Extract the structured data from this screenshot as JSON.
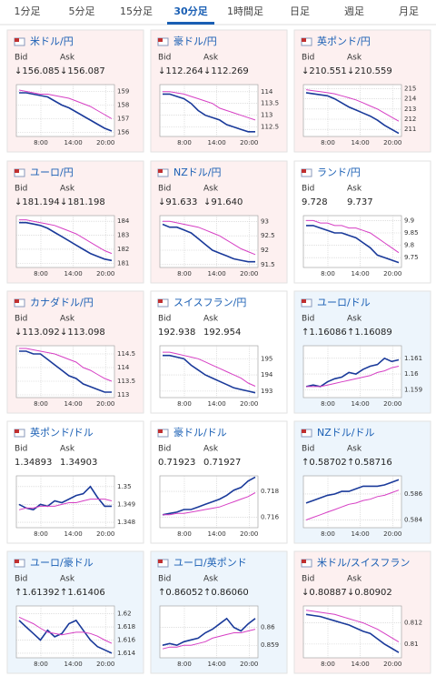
{
  "tabs": {
    "items": [
      "1分足",
      "5分足",
      "15分足",
      "30分足",
      "1時間足",
      "日足",
      "週足",
      "月足"
    ],
    "active": 3,
    "active_color": "#1a5fb4"
  },
  "labels": {
    "bid": "Bid",
    "ask": "Ask"
  },
  "time_labels": [
    "8:00",
    "14:00",
    "20:00"
  ],
  "trend_colors": {
    "down": "#fdf0f0",
    "up": "#edf5fc",
    "flat": "#ffffff"
  },
  "panels": [
    {
      "name": "米ドル/円",
      "bid": "↓156.085",
      "ask": "↓156.087",
      "trend": "down",
      "chart_data": {
        "type": "line",
        "ylim": [
          155.7,
          159.5
        ],
        "yticks": [
          159,
          158,
          157,
          156
        ],
        "series": [
          {
            "color": "#1a3a9a",
            "values": [
              158.9,
              158.9,
              158.8,
              158.7,
              158.6,
              158.3,
              158.0,
              157.8,
              157.5,
              157.2,
              156.9,
              156.6,
              156.3,
              156.1
            ]
          },
          {
            "color": "#d63fc4",
            "values": [
              159.1,
              159.0,
              158.9,
              158.8,
              158.8,
              158.7,
              158.6,
              158.5,
              158.3,
              158.1,
              157.9,
              157.6,
              157.3,
              157.0
            ]
          }
        ]
      }
    },
    {
      "name": "豪ドル/円",
      "bid": "↓112.264",
      "ask": "↓112.269",
      "trend": "down",
      "chart_data": {
        "type": "line",
        "ylim": [
          112.1,
          114.3
        ],
        "yticks": [
          114,
          113.5,
          113,
          112.5
        ],
        "series": [
          {
            "color": "#1a3a9a",
            "values": [
              113.9,
              113.9,
              113.8,
              113.7,
              113.5,
              113.2,
              113.0,
              112.9,
              112.8,
              112.6,
              112.5,
              112.4,
              112.3,
              112.3
            ]
          },
          {
            "color": "#d63fc4",
            "values": [
              114.0,
              114.0,
              113.95,
              113.9,
              113.8,
              113.7,
              113.6,
              113.5,
              113.3,
              113.2,
              113.1,
              113.0,
              112.9,
              112.8
            ]
          }
        ]
      }
    },
    {
      "name": "英ポンド/円",
      "bid": "↓210.551",
      "ask": "↓210.559",
      "trend": "down",
      "chart_data": {
        "type": "line",
        "ylim": [
          210.3,
          215.4
        ],
        "yticks": [
          215,
          214,
          213,
          212,
          211
        ],
        "series": [
          {
            "color": "#1a3a9a",
            "values": [
              214.6,
              214.5,
              214.4,
              214.3,
              214.0,
              213.6,
              213.2,
              212.9,
              212.6,
              212.3,
              211.9,
              211.4,
              211.0,
              210.6
            ]
          },
          {
            "color": "#d63fc4",
            "values": [
              214.9,
              214.8,
              214.7,
              214.6,
              214.5,
              214.3,
              214.1,
              213.9,
              213.6,
              213.3,
              213.0,
              212.6,
              212.2,
              211.8
            ]
          }
        ]
      }
    },
    {
      "name": "ユーロ/円",
      "bid": "↓181.194",
      "ask": "↓181.198",
      "trend": "down",
      "chart_data": {
        "type": "line",
        "ylim": [
          180.7,
          184.4
        ],
        "yticks": [
          184,
          183,
          182,
          181
        ],
        "series": [
          {
            "color": "#1a3a9a",
            "values": [
              183.9,
              183.9,
              183.8,
              183.7,
              183.5,
              183.2,
              182.9,
              182.6,
              182.3,
              182.0,
              181.7,
              181.5,
              181.3,
              181.2
            ]
          },
          {
            "color": "#d63fc4",
            "values": [
              184.1,
              184.1,
              184.0,
              183.9,
              183.8,
              183.7,
              183.5,
              183.3,
              183.1,
              182.8,
              182.5,
              182.2,
              181.9,
              181.7
            ]
          }
        ]
      }
    },
    {
      "name": "NZドル/円",
      "bid": "↓91.633",
      "ask": "↓91.640",
      "trend": "down",
      "chart_data": {
        "type": "line",
        "ylim": [
          91.4,
          93.2
        ],
        "yticks": [
          93,
          92.5,
          92,
          91.5
        ],
        "series": [
          {
            "color": "#1a3a9a",
            "values": [
              92.9,
              92.8,
              92.8,
              92.7,
              92.6,
              92.4,
              92.2,
              92.0,
              91.9,
              91.8,
              91.7,
              91.65,
              91.6,
              91.6
            ]
          },
          {
            "color": "#d63fc4",
            "values": [
              93.0,
              93.0,
              92.95,
              92.9,
              92.85,
              92.8,
              92.7,
              92.6,
              92.5,
              92.35,
              92.2,
              92.05,
              91.95,
              91.85
            ]
          }
        ]
      }
    },
    {
      "name": "ランド/円",
      "bid": "9.728",
      "ask": "9.737",
      "trend": "flat",
      "chart_data": {
        "type": "line",
        "ylim": [
          9.71,
          9.92
        ],
        "yticks": [
          9.9,
          9.85,
          9.8,
          9.75
        ],
        "series": [
          {
            "color": "#1a3a9a",
            "values": [
              9.88,
              9.88,
              9.87,
              9.86,
              9.85,
              9.85,
              9.84,
              9.83,
              9.81,
              9.79,
              9.76,
              9.75,
              9.74,
              9.73
            ]
          },
          {
            "color": "#d63fc4",
            "values": [
              9.9,
              9.9,
              9.89,
              9.89,
              9.88,
              9.88,
              9.87,
              9.87,
              9.86,
              9.85,
              9.83,
              9.81,
              9.79,
              9.77
            ]
          }
        ]
      }
    },
    {
      "name": "カナダドル/円",
      "bid": "↓113.092",
      "ask": "↓113.098",
      "trend": "down",
      "chart_data": {
        "type": "line",
        "ylim": [
          112.9,
          114.8
        ],
        "yticks": [
          114.5,
          114,
          113.5,
          113
        ],
        "series": [
          {
            "color": "#1a3a9a",
            "values": [
              114.6,
              114.6,
              114.5,
              114.5,
              114.3,
              114.1,
              113.9,
              113.7,
              113.6,
              113.4,
              113.3,
              113.2,
              113.1,
              113.1
            ]
          },
          {
            "color": "#d63fc4",
            "values": [
              114.7,
              114.7,
              114.65,
              114.6,
              114.55,
              114.5,
              114.4,
              114.3,
              114.2,
              114.0,
              113.9,
              113.75,
              113.6,
              113.5
            ]
          }
        ]
      }
    },
    {
      "name": "スイスフラン/円",
      "bid": "192.938",
      "ask": "192.954",
      "trend": "flat",
      "chart_data": {
        "type": "line",
        "ylim": [
          192.6,
          195.8
        ],
        "yticks": [
          195,
          194,
          193
        ],
        "series": [
          {
            "color": "#1a3a9a",
            "values": [
              195.2,
              195.2,
              195.1,
              195.0,
              194.6,
              194.3,
              194.0,
              193.8,
              193.6,
              193.4,
              193.2,
              193.1,
              193.0,
              192.9
            ]
          },
          {
            "color": "#d63fc4",
            "values": [
              195.4,
              195.4,
              195.3,
              195.2,
              195.1,
              195.0,
              194.8,
              194.6,
              194.4,
              194.2,
              194.0,
              193.8,
              193.5,
              193.3
            ]
          }
        ]
      }
    },
    {
      "name": "ユーロ/ドル",
      "bid": "↑1.16086",
      "ask": "↑1.16089",
      "trend": "up",
      "chart_data": {
        "type": "line",
        "ylim": [
          1.1585,
          1.1618
        ],
        "yticks": [
          1.161,
          1.16,
          1.159
        ],
        "series": [
          {
            "color": "#1a3a9a",
            "values": [
              1.1592,
              1.1593,
              1.1592,
              1.1595,
              1.1597,
              1.1598,
              1.1601,
              1.16,
              1.1603,
              1.1605,
              1.1606,
              1.161,
              1.1608,
              1.1609
            ]
          },
          {
            "color": "#d63fc4",
            "values": [
              1.1592,
              1.1592,
              1.1592,
              1.1593,
              1.1594,
              1.1595,
              1.1596,
              1.1597,
              1.1598,
              1.1599,
              1.1601,
              1.1602,
              1.1604,
              1.1605
            ]
          }
        ]
      }
    },
    {
      "name": "英ポンド/ドル",
      "bid": "1.34893",
      "ask": "1.34903",
      "trend": "flat",
      "chart_data": {
        "type": "line",
        "ylim": [
          1.3477,
          1.3506
        ],
        "yticks": [
          1.35,
          1.349,
          1.348
        ],
        "series": [
          {
            "color": "#1a3a9a",
            "values": [
              1.349,
              1.3488,
              1.3487,
              1.349,
              1.3489,
              1.3492,
              1.3491,
              1.3493,
              1.3495,
              1.3496,
              1.35,
              1.3494,
              1.3489,
              1.3489
            ]
          },
          {
            "color": "#d63fc4",
            "values": [
              1.3487,
              1.3488,
              1.3488,
              1.3489,
              1.3489,
              1.3489,
              1.349,
              1.3491,
              1.3491,
              1.3492,
              1.3493,
              1.3493,
              1.3493,
              1.3492
            ]
          }
        ]
      }
    },
    {
      "name": "豪ドル/ドル",
      "bid": "0.71923",
      "ask": "0.71927",
      "trend": "flat",
      "chart_data": {
        "type": "line",
        "ylim": [
          0.7152,
          0.7192
        ],
        "yticks": [
          0.718,
          0.716
        ],
        "series": [
          {
            "color": "#1a3a9a",
            "values": [
              0.7162,
              0.7163,
              0.7164,
              0.7166,
              0.7166,
              0.7168,
              0.717,
              0.7172,
              0.7174,
              0.7177,
              0.7181,
              0.7183,
              0.7188,
              0.7191
            ]
          },
          {
            "color": "#d63fc4",
            "values": [
              0.7162,
              0.7162,
              0.7163,
              0.7163,
              0.7164,
              0.7165,
              0.7166,
              0.7167,
              0.7168,
              0.717,
              0.7172,
              0.7174,
              0.7176,
              0.7179
            ]
          }
        ]
      }
    },
    {
      "name": "NZドル/ドル",
      "bid": "↑0.58702",
      "ask": "↑0.58716",
      "trend": "up",
      "chart_data": {
        "type": "line",
        "ylim": [
          0.5834,
          0.5874
        ],
        "yticks": [
          0.586,
          0.584
        ],
        "series": [
          {
            "color": "#1a3a9a",
            "values": [
              0.5853,
              0.5855,
              0.5857,
              0.5859,
              0.586,
              0.5862,
              0.5862,
              0.5864,
              0.5866,
              0.5866,
              0.5866,
              0.5867,
              0.5869,
              0.5871
            ]
          },
          {
            "color": "#d63fc4",
            "values": [
              0.584,
              0.5842,
              0.5844,
              0.5846,
              0.5848,
              0.585,
              0.5852,
              0.5853,
              0.5855,
              0.5856,
              0.5858,
              0.5859,
              0.5861,
              0.5863
            ]
          }
        ]
      }
    },
    {
      "name": "ユーロ/豪ドル",
      "bid": "↑1.61392",
      "ask": "↑1.61406",
      "trend": "up",
      "chart_data": {
        "type": "line",
        "ylim": [
          1.6133,
          1.6212
        ],
        "yticks": [
          1.62,
          1.618,
          1.616,
          1.614
        ],
        "series": [
          {
            "color": "#1a3a9a",
            "values": [
              1.619,
              1.618,
              1.617,
              1.616,
              1.6175,
              1.6165,
              1.617,
              1.6185,
              1.619,
              1.6175,
              1.616,
              1.615,
              1.6145,
              1.614
            ]
          },
          {
            "color": "#d63fc4",
            "values": [
              1.6195,
              1.619,
              1.6185,
              1.6178,
              1.6172,
              1.617,
              1.6168,
              1.617,
              1.6172,
              1.6172,
              1.617,
              1.6166,
              1.616,
              1.6155
            ]
          }
        ]
      }
    },
    {
      "name": "ユーロ/英ポンド",
      "bid": "↑0.86052",
      "ask": "↑0.86060",
      "trend": "up",
      "chart_data": {
        "type": "line",
        "ylim": [
          0.8583,
          0.8612
        ],
        "yticks": [
          0.86,
          0.859
        ],
        "series": [
          {
            "color": "#1a3a9a",
            "values": [
              0.859,
              0.8591,
              0.859,
              0.8592,
              0.8593,
              0.8594,
              0.8597,
              0.8599,
              0.8602,
              0.8605,
              0.86,
              0.8598,
              0.8602,
              0.8605
            ]
          },
          {
            "color": "#d63fc4",
            "values": [
              0.8588,
              0.8589,
              0.8589,
              0.859,
              0.859,
              0.8591,
              0.8592,
              0.8594,
              0.8595,
              0.8596,
              0.8597,
              0.8597,
              0.8598,
              0.8599
            ]
          }
        ]
      }
    },
    {
      "name": "米ドル/スイスフラン",
      "bid": "↓0.80887",
      "ask": "↓0.80902",
      "trend": "down",
      "chart_data": {
        "type": "line",
        "ylim": [
          0.8087,
          0.8136
        ],
        "yticks": [
          0.812,
          0.81
        ],
        "series": [
          {
            "color": "#1a3a9a",
            "values": [
              0.8128,
              0.8127,
              0.8126,
              0.8124,
              0.8122,
              0.812,
              0.8118,
              0.8115,
              0.8112,
              0.811,
              0.8105,
              0.81,
              0.8096,
              0.8092
            ]
          },
          {
            "color": "#d63fc4",
            "values": [
              0.8132,
              0.8131,
              0.813,
              0.8129,
              0.8128,
              0.8126,
              0.8124,
              0.8122,
              0.812,
              0.8117,
              0.8114,
              0.811,
              0.8106,
              0.8102
            ]
          }
        ]
      }
    }
  ]
}
